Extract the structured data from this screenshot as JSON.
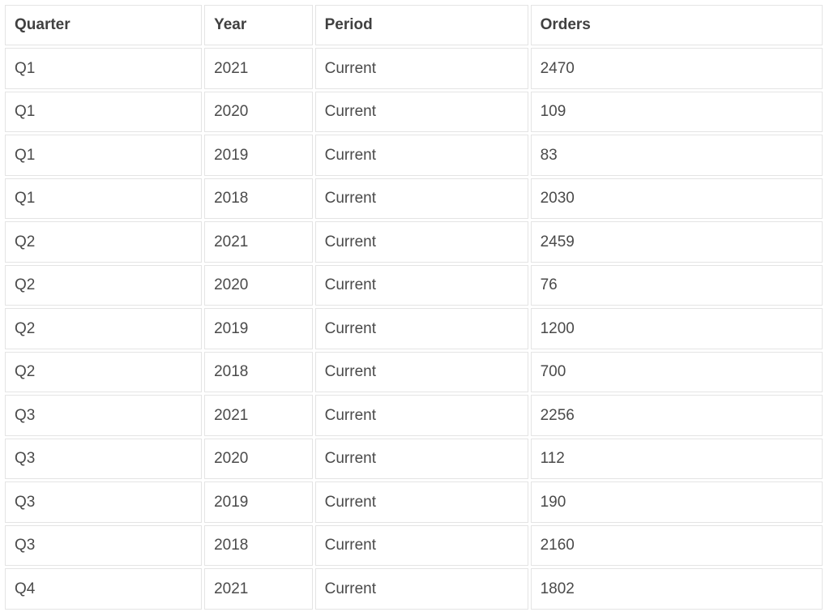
{
  "table": {
    "headers": [
      "Quarter",
      "Year",
      "Period",
      "Orders"
    ],
    "rows": [
      [
        "Q1",
        "2021",
        "Current",
        "2470"
      ],
      [
        "Q1",
        "2020",
        "Current",
        "109"
      ],
      [
        "Q1",
        "2019",
        "Current",
        "83"
      ],
      [
        "Q1",
        "2018",
        "Current",
        "2030"
      ],
      [
        "Q2",
        "2021",
        "Current",
        "2459"
      ],
      [
        "Q2",
        "2020",
        "Current",
        "76"
      ],
      [
        "Q2",
        "2019",
        "Current",
        "1200"
      ],
      [
        "Q2",
        "2018",
        "Current",
        "700"
      ],
      [
        "Q3",
        "2021",
        "Current",
        "2256"
      ],
      [
        "Q3",
        "2020",
        "Current",
        "112"
      ],
      [
        "Q3",
        "2019",
        "Current",
        "190"
      ],
      [
        "Q3",
        "2018",
        "Current",
        "2160"
      ],
      [
        "Q4",
        "2021",
        "Current",
        "1802"
      ]
    ]
  }
}
